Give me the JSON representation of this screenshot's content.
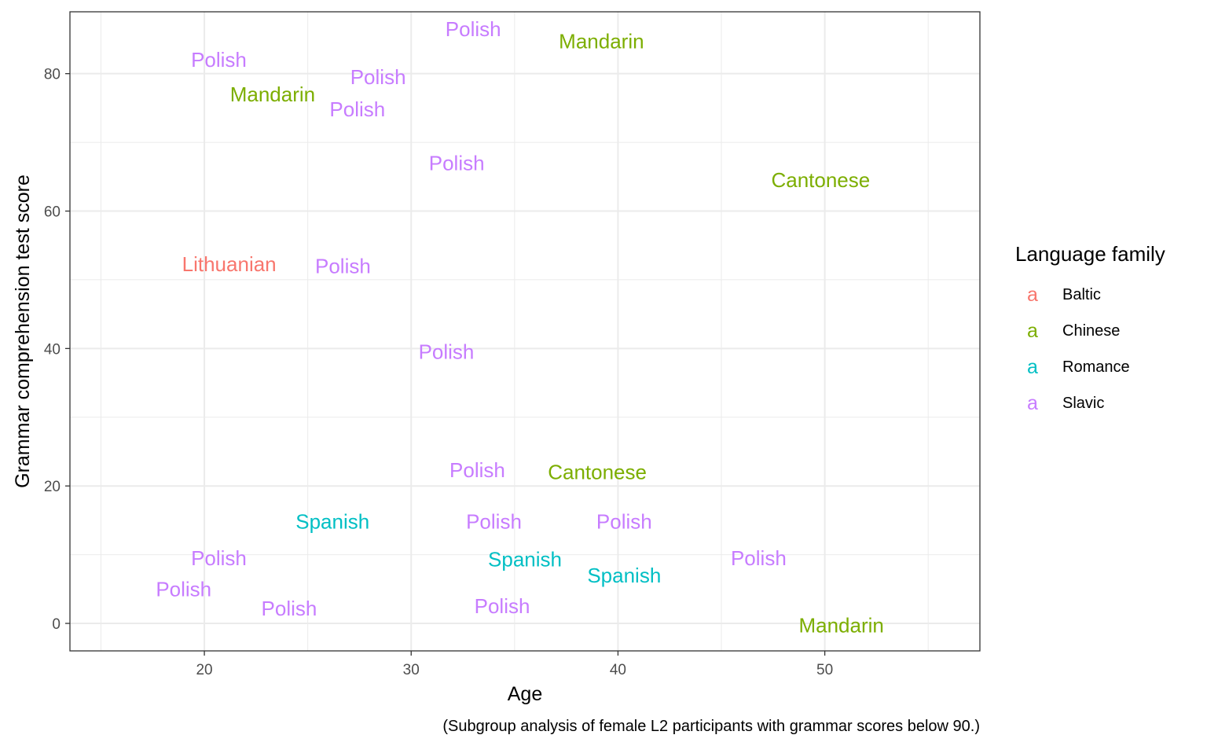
{
  "chart_data": {
    "type": "scatter",
    "caption": "(Subgroup analysis of female L2 participants with grammar scores below 90.)",
    "xlabel": "Age",
    "ylabel": "Grammar comprehension test score",
    "xlim": [
      13.5,
      57.5
    ],
    "ylim": [
      -4,
      89
    ],
    "x_ticks": [
      20,
      30,
      40,
      50
    ],
    "y_ticks": [
      0,
      20,
      40,
      60,
      80
    ],
    "grid": true,
    "legend": {
      "title": "Language family",
      "position": "right",
      "key_glyph": "a",
      "entries": [
        {
          "name": "Baltic",
          "color": "#F8766D"
        },
        {
          "name": "Chinese",
          "color": "#7CAE00"
        },
        {
          "name": "Romance",
          "color": "#00BFC4"
        },
        {
          "name": "Slavic",
          "color": "#C77CFF"
        }
      ]
    },
    "points": [
      {
        "label": "Polish",
        "family": "Slavic",
        "x": 33.0,
        "y": 86.5
      },
      {
        "label": "Mandarin",
        "family": "Chinese",
        "x": 39.2,
        "y": 84.7
      },
      {
        "label": "Polish",
        "family": "Slavic",
        "x": 20.7,
        "y": 82.0
      },
      {
        "label": "Polish",
        "family": "Slavic",
        "x": 28.4,
        "y": 79.5
      },
      {
        "label": "Mandarin",
        "family": "Chinese",
        "x": 23.3,
        "y": 77.0
      },
      {
        "label": "Polish",
        "family": "Slavic",
        "x": 27.4,
        "y": 74.8
      },
      {
        "label": "Polish",
        "family": "Slavic",
        "x": 32.2,
        "y": 67.0
      },
      {
        "label": "Cantonese",
        "family": "Chinese",
        "x": 49.8,
        "y": 64.5
      },
      {
        "label": "Lithuanian",
        "family": "Baltic",
        "x": 21.2,
        "y": 52.3
      },
      {
        "label": "Polish",
        "family": "Slavic",
        "x": 26.7,
        "y": 52.0
      },
      {
        "label": "Polish",
        "family": "Slavic",
        "x": 31.7,
        "y": 39.5
      },
      {
        "label": "Polish",
        "family": "Slavic",
        "x": 33.2,
        "y": 22.3
      },
      {
        "label": "Cantonese",
        "family": "Chinese",
        "x": 39.0,
        "y": 22.0
      },
      {
        "label": "Spanish",
        "family": "Romance",
        "x": 26.2,
        "y": 14.8
      },
      {
        "label": "Polish",
        "family": "Slavic",
        "x": 34.0,
        "y": 14.8
      },
      {
        "label": "Polish",
        "family": "Slavic",
        "x": 40.3,
        "y": 14.8
      },
      {
        "label": "Polish",
        "family": "Slavic",
        "x": 20.7,
        "y": 9.5
      },
      {
        "label": "Spanish",
        "family": "Romance",
        "x": 35.5,
        "y": 9.3
      },
      {
        "label": "Polish",
        "family": "Slavic",
        "x": 46.8,
        "y": 9.5
      },
      {
        "label": "Spanish",
        "family": "Romance",
        "x": 40.3,
        "y": 7.0
      },
      {
        "label": "Polish",
        "family": "Slavic",
        "x": 19.0,
        "y": 5.0
      },
      {
        "label": "Polish",
        "family": "Slavic",
        "x": 24.1,
        "y": 2.2
      },
      {
        "label": "Polish",
        "family": "Slavic",
        "x": 34.4,
        "y": 2.5
      },
      {
        "label": "Mandarin",
        "family": "Chinese",
        "x": 50.8,
        "y": -0.3
      }
    ]
  }
}
